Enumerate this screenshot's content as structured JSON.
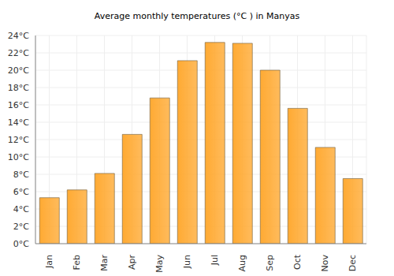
{
  "chart_data": {
    "type": "bar",
    "title": "Average monthly temperatures (°C ) in Manyas",
    "categories": [
      "Jan",
      "Feb",
      "Mar",
      "Apr",
      "May",
      "Jun",
      "Jul",
      "Aug",
      "Sep",
      "Oct",
      "Nov",
      "Dec"
    ],
    "values": [
      5.3,
      6.2,
      8.1,
      12.6,
      16.8,
      21.1,
      23.2,
      23.1,
      20.0,
      15.6,
      11.1,
      7.5
    ],
    "color": "#ffaa33",
    "ylim": [
      0,
      24
    ],
    "yticks": [
      {
        "value": 0,
        "label": "0°C"
      },
      {
        "value": 2,
        "label": "2°C"
      },
      {
        "value": 4,
        "label": "4°C"
      },
      {
        "value": 6,
        "label": "6°C"
      },
      {
        "value": 8,
        "label": "8°C"
      },
      {
        "value": 10,
        "label": "10°C"
      },
      {
        "value": 12,
        "label": "12°C"
      },
      {
        "value": 14,
        "label": "14°C"
      },
      {
        "value": 16,
        "label": "16°C"
      },
      {
        "value": 18,
        "label": "18°C"
      },
      {
        "value": 20,
        "label": "20°C"
      },
      {
        "value": 22,
        "label": "22°C"
      },
      {
        "value": 24,
        "label": "24°C"
      }
    ],
    "grid": true
  }
}
